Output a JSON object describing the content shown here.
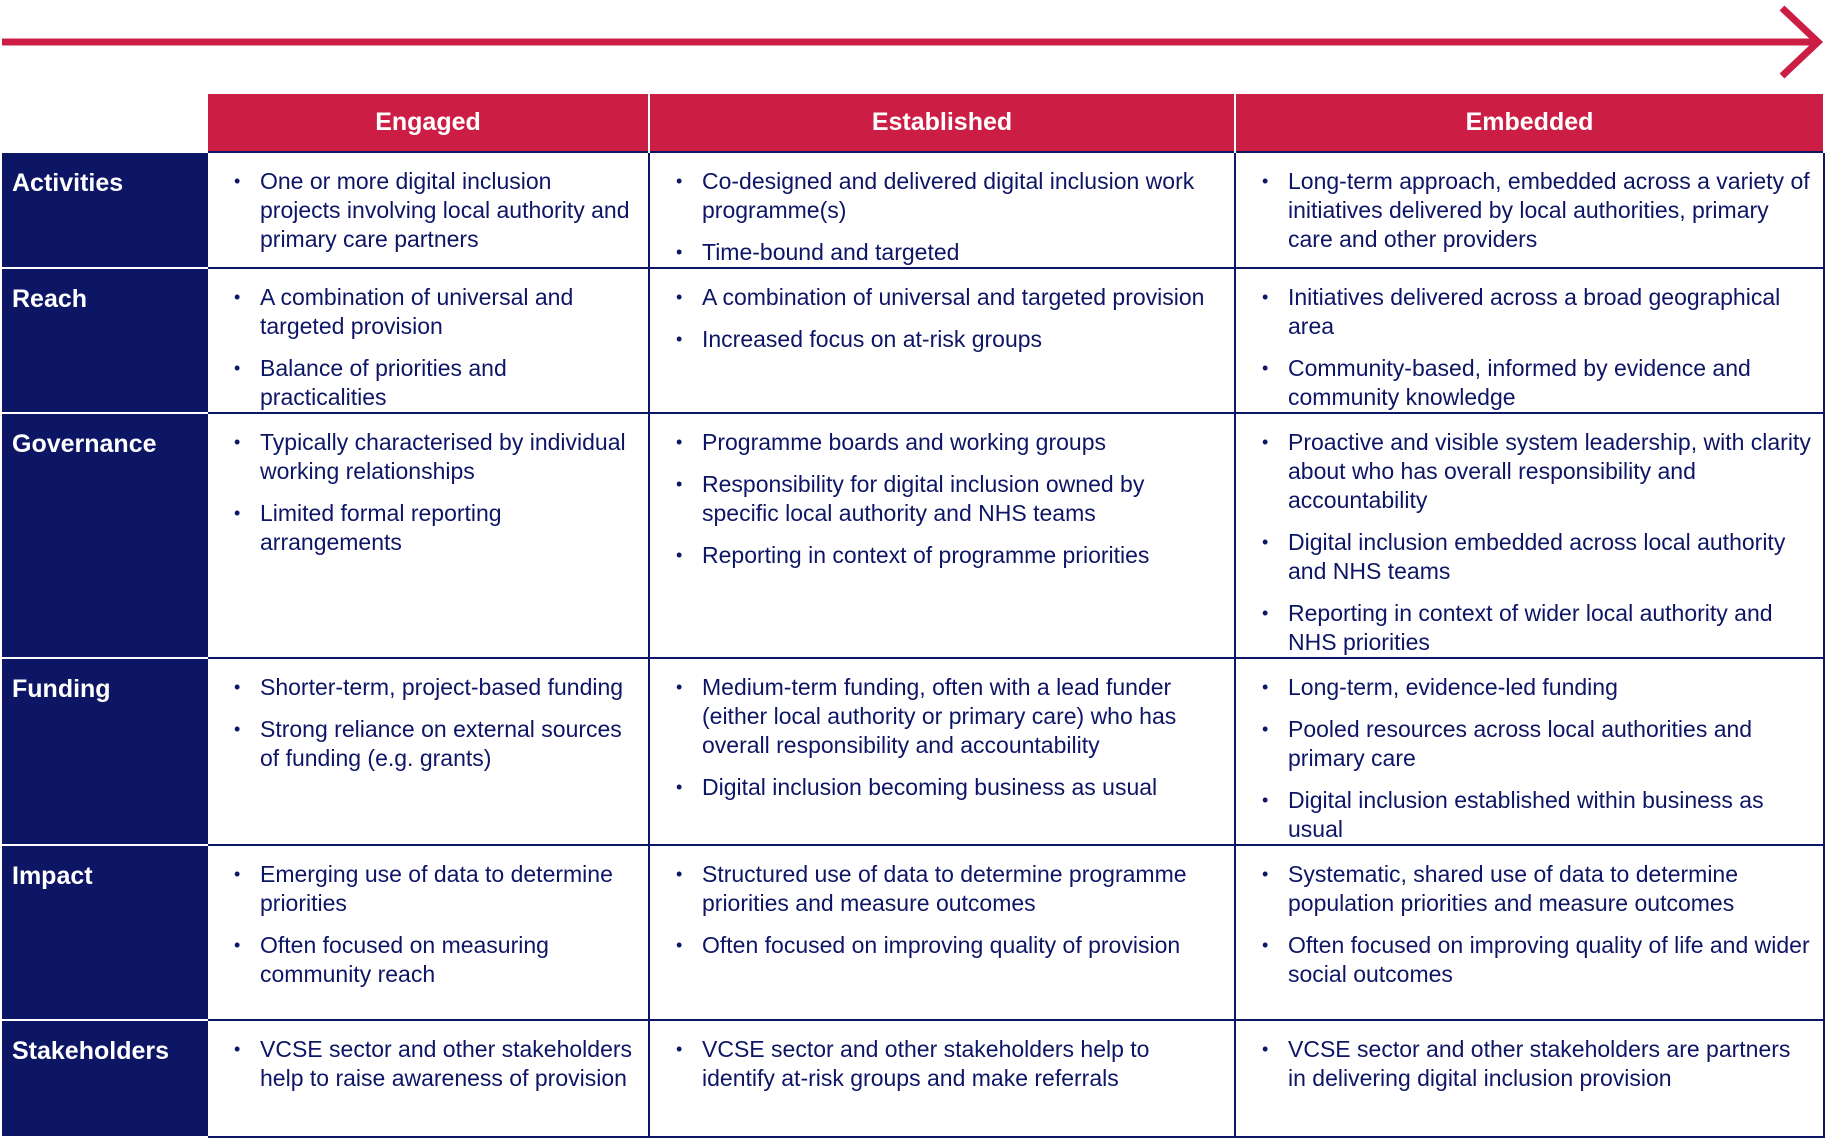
{
  "colors": {
    "accent": "#cc1e44",
    "navy": "#0d1565"
  },
  "stages": [
    "Engaged",
    "Established",
    "Embedded"
  ],
  "rows": [
    {
      "label": "Activities",
      "cells": [
        [
          "One or more digital inclusion projects involving local authority and primary care partners"
        ],
        [
          "Co-designed and delivered digital inclusion work programme(s)",
          "Time-bound and targeted"
        ],
        [
          "Long-term approach, embedded across a variety of initiatives delivered by local authorities, primary care and other providers"
        ]
      ]
    },
    {
      "label": "Reach",
      "cells": [
        [
          "A combination of universal and targeted provision",
          "Balance of priorities and practicalities"
        ],
        [
          "A combination of universal and targeted provision",
          "Increased focus on at-risk groups"
        ],
        [
          "Initiatives delivered across a broad geographical area",
          "Community-based, informed by evidence and community knowledge"
        ]
      ]
    },
    {
      "label": "Governance",
      "cells": [
        [
          "Typically characterised by individual working relationships",
          "Limited formal reporting arrangements"
        ],
        [
          "Programme boards and working groups",
          "Responsibility for digital inclusion owned by specific local authority and NHS teams",
          "Reporting in context of programme priorities"
        ],
        [
          "Proactive and visible system leadership, with clarity about who has overall responsibility and accountability",
          "Digital inclusion embedded across local authority and NHS teams",
          "Reporting in context of wider local authority and NHS priorities"
        ]
      ]
    },
    {
      "label": "Funding",
      "cells": [
        [
          "Shorter-term, project-based funding",
          "Strong reliance on external sources of funding (e.g. grants)"
        ],
        [
          "Medium-term funding, often with a lead funder (either local authority or primary care) who has overall responsibility and accountability",
          "Digital inclusion becoming business as usual"
        ],
        [
          "Long-term, evidence-led funding",
          "Pooled resources across local authorities and primary care",
          "Digital inclusion established within business as usual"
        ]
      ]
    },
    {
      "label": "Impact",
      "cells": [
        [
          "Emerging use of data to determine priorities",
          "Often focused on measuring community reach"
        ],
        [
          "Structured use of data to determine programme priorities and measure outcomes",
          "Often focused on improving quality of provision"
        ],
        [
          "Systematic, shared use of data to determine population priorities and measure outcomes",
          "Often focused on improving quality of life and wider social outcomes"
        ]
      ]
    },
    {
      "label": "Stakeholders",
      "cells": [
        [
          "VCSE sector and other stakeholders help to raise awareness of provision"
        ],
        [
          "VCSE sector and other stakeholders help to identify at-risk groups and make referrals"
        ],
        [
          "VCSE sector and other stakeholders are partners in delivering digital inclusion provision"
        ]
      ]
    }
  ]
}
